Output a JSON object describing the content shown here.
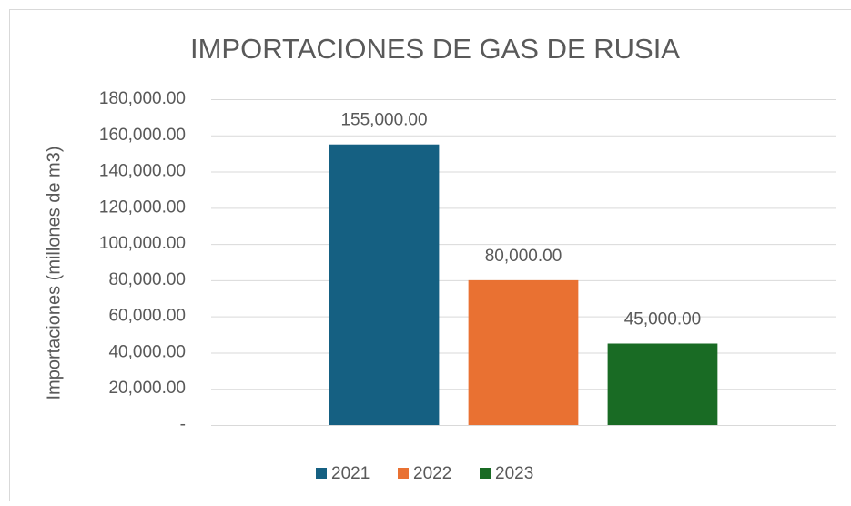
{
  "chart_data": {
    "type": "bar",
    "title": "IMPORTACIONES DE GAS DE RUSIA",
    "y_label": "Importaciones (millones de m3)",
    "categories": [
      null
    ],
    "series": [
      {
        "name": "2021",
        "color": "#156082",
        "values": [
          155000
        ],
        "value_labels": [
          "155,000.00"
        ]
      },
      {
        "name": "2022",
        "color": "#E97132",
        "values": [
          80000
        ],
        "value_labels": [
          "80,000.00"
        ]
      },
      {
        "name": "2023",
        "color": "#196B24",
        "values": [
          45000
        ],
        "value_labels": [
          "45,000.00"
        ]
      }
    ],
    "ylim": [
      0,
      180000
    ],
    "yticks": [
      {
        "value": 0,
        "label": "-"
      },
      {
        "value": 20000,
        "label": "20,000.00"
      },
      {
        "value": 40000,
        "label": "40,000.00"
      },
      {
        "value": 60000,
        "label": "60,000.00"
      },
      {
        "value": 80000,
        "label": "80,000.00"
      },
      {
        "value": 100000,
        "label": "100,000.00"
      },
      {
        "value": 120000,
        "label": "120,000.00"
      },
      {
        "value": 140000,
        "label": "140,000.00"
      },
      {
        "value": 160000,
        "label": "160,000.00"
      },
      {
        "value": 180000,
        "label": "180,000.00"
      }
    ],
    "grid": true,
    "legend": "bottom"
  }
}
